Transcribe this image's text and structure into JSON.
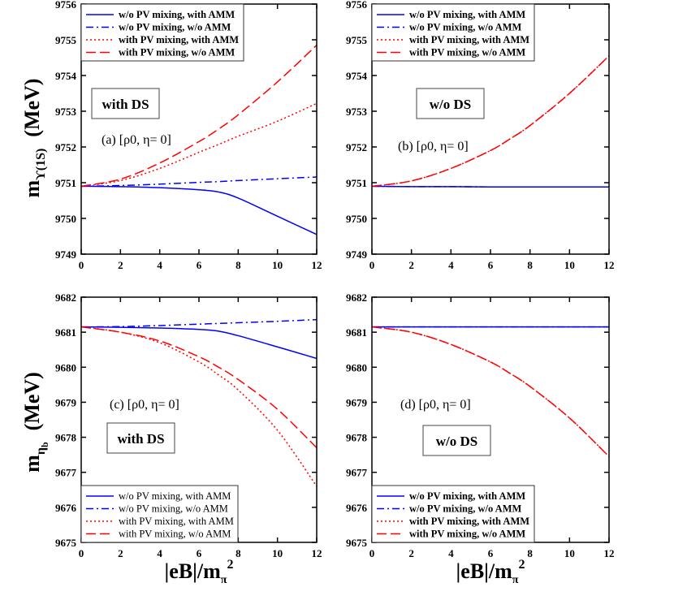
{
  "colors": {
    "blue": "#0000ff",
    "red": "#ff0000",
    "axis": "#000000",
    "box": "#555555"
  },
  "series_styles": [
    {
      "name": "w/o PV mixing, with AMM",
      "color": "#0000ff",
      "dash": "solid"
    },
    {
      "name": "w/o PV mixing, w/o AMM",
      "color": "#0000ff",
      "dash": "dash-dot"
    },
    {
      "name": "with PV mixing, with AMM",
      "color": "#ff0000",
      "dash": "dotted"
    },
    {
      "name": "with PV mixing, w/o AMM",
      "color": "#ff0000",
      "dash": "dashed"
    }
  ],
  "axis_labels": {
    "x": {
      "main": "|eB|/m",
      "sub": "π",
      "sup": "2"
    },
    "y_top": {
      "main": "m",
      "sub": "ϒ(1S)",
      "unit": "(MeV)"
    },
    "y_bottom": {
      "main": "m",
      "sub": "η",
      "subsub": "b",
      "unit": "(MeV)"
    }
  },
  "chart_data": [
    {
      "type": "line",
      "panel": "a",
      "annotation": "(a) [ρ0, η= 0]",
      "box_label": "with DS",
      "legend_placement": "top-left",
      "xlim": [
        0,
        12
      ],
      "ylim": [
        9749,
        9756
      ],
      "xticks": [
        "0",
        "2",
        "4",
        "6",
        "8",
        "10",
        "12"
      ],
      "yticks": [
        "9749",
        "9750",
        "9751",
        "9752",
        "9753",
        "9754",
        "9755",
        "9756"
      ],
      "x": [
        0,
        2,
        4,
        6,
        7,
        8,
        10,
        12
      ],
      "series": [
        {
          "name": "w/o PV mixing, with AMM",
          "values": [
            9750.9,
            9750.89,
            9750.86,
            9750.8,
            9750.74,
            9750.57,
            9750.06,
            9749.55
          ]
        },
        {
          "name": "w/o PV mixing, w/o AMM",
          "values": [
            9750.9,
            9750.92,
            9750.96,
            9751.01,
            9751.03,
            9751.06,
            9751.11,
            9751.16
          ]
        },
        {
          "name": "with PV mixing, with AMM",
          "values": [
            9750.9,
            9751.06,
            9751.4,
            9751.85,
            9752.07,
            9752.3,
            9752.72,
            9753.22
          ]
        },
        {
          "name": "with PV mixing, w/o AMM",
          "values": [
            9750.9,
            9751.1,
            9751.55,
            9752.15,
            9752.5,
            9752.9,
            9753.82,
            9754.85
          ]
        }
      ]
    },
    {
      "type": "line",
      "panel": "b",
      "annotation": "(b) [ρ0, η= 0]",
      "box_label": "w/o DS",
      "legend_placement": "top-left",
      "xlim": [
        0,
        12
      ],
      "ylim": [
        9749,
        9756
      ],
      "xticks": [
        "0",
        "2",
        "4",
        "6",
        "8",
        "10",
        "12"
      ],
      "yticks": [
        "9749",
        "9750",
        "9751",
        "9752",
        "9753",
        "9754",
        "9755",
        "9756"
      ],
      "x": [
        0,
        2,
        4,
        6,
        7,
        8,
        10,
        12
      ],
      "series": [
        {
          "name": "w/o PV mixing, with AMM",
          "values": [
            9750.9,
            9750.89,
            9750.89,
            9750.88,
            9750.88,
            9750.88,
            9750.88,
            9750.88
          ]
        },
        {
          "name": "w/o PV mixing, w/o AMM",
          "values": [
            9750.9,
            9750.89,
            9750.89,
            9750.88,
            9750.88,
            9750.88,
            9750.88,
            9750.88
          ]
        },
        {
          "name": "with PV mixing, with AMM",
          "values": [
            9750.9,
            9751.05,
            9751.4,
            9751.9,
            9752.23,
            9752.6,
            9753.5,
            9754.55
          ]
        },
        {
          "name": "with PV mixing, w/o AMM",
          "values": [
            9750.9,
            9751.05,
            9751.4,
            9751.9,
            9752.23,
            9752.6,
            9753.5,
            9754.55
          ]
        }
      ]
    },
    {
      "type": "line",
      "panel": "c",
      "annotation": "(c) [ρ0, η= 0]",
      "box_label": "with DS",
      "legend_placement": "bottom-left",
      "xlim": [
        0,
        12
      ],
      "ylim": [
        9675,
        9682
      ],
      "xticks": [
        "0",
        "2",
        "4",
        "6",
        "8",
        "10",
        "12"
      ],
      "yticks": [
        "9675",
        "9676",
        "9677",
        "9678",
        "9679",
        "9680",
        "9681",
        "9682"
      ],
      "x": [
        0,
        2,
        4,
        6,
        7,
        8,
        10,
        12
      ],
      "series": [
        {
          "name": "w/o PV mixing, with AMM",
          "values": [
            9681.15,
            9681.14,
            9681.12,
            9681.08,
            9681.03,
            9680.9,
            9680.58,
            9680.25
          ]
        },
        {
          "name": "w/o PV mixing, w/o AMM",
          "values": [
            9681.15,
            9681.16,
            9681.19,
            9681.23,
            9681.25,
            9681.27,
            9681.31,
            9681.36
          ]
        },
        {
          "name": "with PV mixing, with AMM",
          "values": [
            9681.15,
            9681.0,
            9680.7,
            9680.15,
            9679.78,
            9679.35,
            9678.2,
            9676.6
          ]
        },
        {
          "name": "with PV mixing, w/o AMM",
          "values": [
            9681.15,
            9681.0,
            9680.75,
            9680.3,
            9680.0,
            9679.65,
            9678.8,
            9677.7
          ]
        }
      ]
    },
    {
      "type": "line",
      "panel": "d",
      "annotation": "(d) [ρ0, η= 0]",
      "box_label": "w/o DS",
      "legend_placement": "bottom-left",
      "xlim": [
        0,
        12
      ],
      "ylim": [
        9675,
        9682
      ],
      "xticks": [
        "0",
        "2",
        "4",
        "6",
        "8",
        "10",
        "12"
      ],
      "yticks": [
        "9675",
        "9676",
        "9677",
        "9678",
        "9679",
        "9680",
        "9681",
        "9682"
      ],
      "x": [
        0,
        2,
        4,
        6,
        7,
        8,
        10,
        12
      ],
      "series": [
        {
          "name": "w/o PV mixing, with AMM",
          "values": [
            9681.15,
            9681.15,
            9681.15,
            9681.15,
            9681.15,
            9681.15,
            9681.15,
            9681.15
          ]
        },
        {
          "name": "w/o PV mixing, w/o AMM",
          "values": [
            9681.15,
            9681.15,
            9681.15,
            9681.15,
            9681.15,
            9681.15,
            9681.15,
            9681.15
          ]
        },
        {
          "name": "with PV mixing, with AMM",
          "values": [
            9681.15,
            9681.0,
            9680.65,
            9680.15,
            9679.82,
            9679.45,
            9678.55,
            9677.45
          ]
        },
        {
          "name": "with PV mixing, w/o AMM",
          "values": [
            9681.15,
            9681.0,
            9680.65,
            9680.15,
            9679.82,
            9679.45,
            9678.55,
            9677.45
          ]
        }
      ]
    }
  ]
}
